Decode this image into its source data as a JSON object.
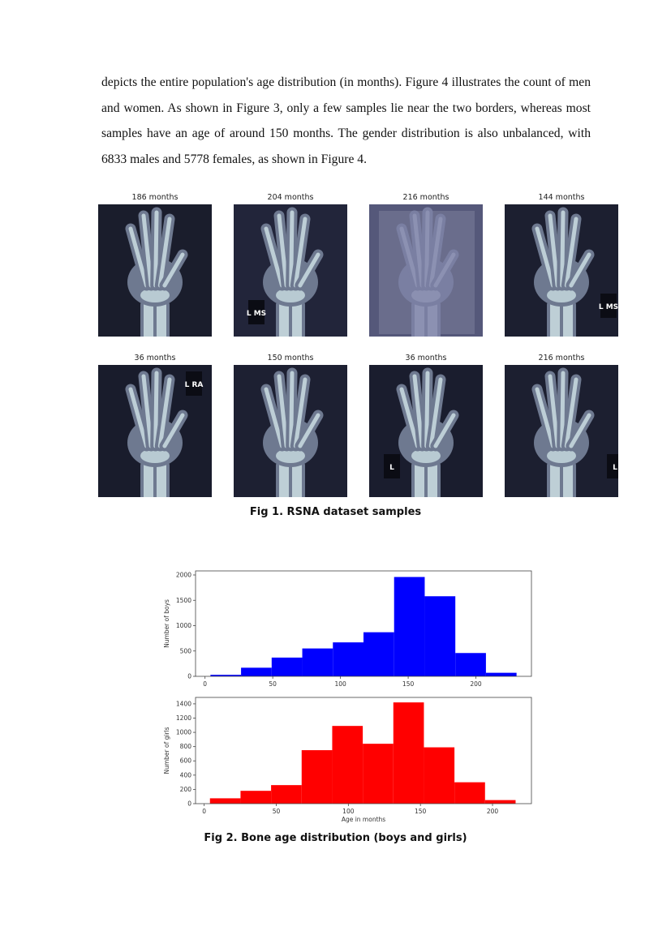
{
  "paragraph": "depicts the entire population's age distribution (in months). Figure 4 illustrates the count of men and women. As shown in Figure 3, only a few samples lie near the two borders, whereas most samples have an age of around 150 months. The gender distribution is also unbalanced, with 6833 males and 5778 females, as shown in Figure 4.",
  "figure1": {
    "caption": "Fig 1. RSNA dataset samples",
    "samples": [
      {
        "label": "186 months",
        "marker": ""
      },
      {
        "label": "204 months",
        "marker": "L MS"
      },
      {
        "label": "216 months",
        "marker": ""
      },
      {
        "label": "144 months",
        "marker": "L MS"
      },
      {
        "label": "36 months",
        "marker": "L RA"
      },
      {
        "label": "150 months",
        "marker": ""
      },
      {
        "label": "36 months",
        "marker": "L"
      },
      {
        "label": "216 months",
        "marker": "L"
      }
    ]
  },
  "figure2": {
    "caption": "Fig 2. Bone age distribution (boys and girls)"
  },
  "chart_data": [
    {
      "type": "bar",
      "title": "",
      "xlabel": "",
      "ylabel": "Number of boys",
      "bin_edges": [
        4,
        26.6,
        49.2,
        71.8,
        94.4,
        117,
        139.6,
        162.2,
        184.8,
        207.4,
        230
      ],
      "values": [
        30,
        170,
        370,
        550,
        670,
        870,
        1960,
        1580,
        460,
        70
      ],
      "color": "#0000ff",
      "xlim": [
        -7,
        241
      ],
      "ylim": [
        0,
        2080
      ],
      "xticks": [
        0,
        50,
        100,
        150,
        200
      ],
      "yticks": [
        0,
        500,
        1000,
        1500,
        2000
      ]
    },
    {
      "type": "bar",
      "title": "",
      "xlabel": "Age in months",
      "ylabel": "Number of girls",
      "bin_edges": [
        4,
        25.2,
        46.4,
        67.6,
        88.8,
        110,
        131.2,
        152.4,
        173.6,
        194.8,
        216
      ],
      "values": [
        75,
        180,
        260,
        750,
        1090,
        840,
        1420,
        790,
        300,
        50
      ],
      "color": "#ff0000",
      "xlim": [
        -6,
        227
      ],
      "ylim": [
        0,
        1490
      ],
      "xticks": [
        0,
        50,
        100,
        150,
        200
      ],
      "yticks": [
        0,
        200,
        400,
        600,
        800,
        1000,
        1200,
        1400
      ]
    }
  ],
  "icons": {
    "xray_image": "hand-xray-image"
  }
}
